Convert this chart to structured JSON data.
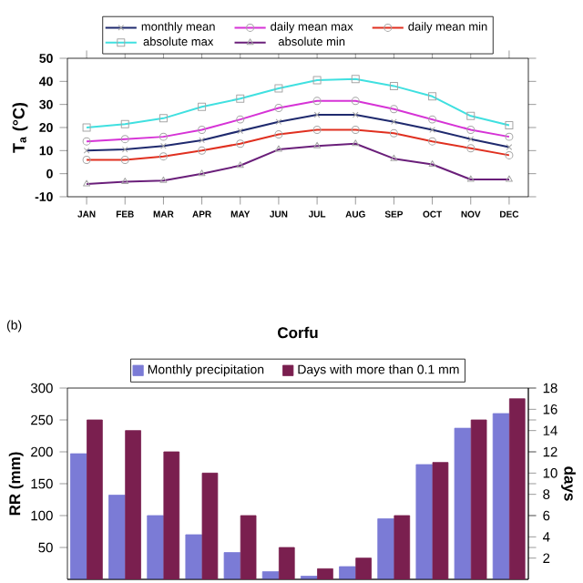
{
  "chart_data": [
    {
      "type": "line",
      "categories": [
        "JAN",
        "FEB",
        "MAR",
        "APR",
        "MAY",
        "JUN",
        "JUL",
        "AUG",
        "SEP",
        "OCT",
        "NOV",
        "DEC"
      ],
      "ylabel": "T$_{a}$ (°C)",
      "ylim": [
        -10,
        50
      ],
      "yticks": [
        -10,
        0,
        10,
        20,
        30,
        40,
        50
      ],
      "legend": "top",
      "series": [
        {
          "name": "monthly mean",
          "color": "#1f2a6e",
          "marker": "cross",
          "values": [
            10,
            10.5,
            12,
            14.5,
            18.5,
            22.5,
            25.5,
            25.5,
            22.5,
            19,
            15,
            11.5
          ]
        },
        {
          "name": "daily mean max",
          "color": "#d633d6",
          "marker": "circle",
          "values": [
            14,
            15,
            16,
            19,
            23.5,
            28.5,
            31.5,
            31.5,
            28,
            23.5,
            19,
            16
          ]
        },
        {
          "name": "daily mean min",
          "color": "#e03020",
          "marker": "circle",
          "values": [
            6,
            6,
            7.5,
            10,
            13,
            17,
            19,
            19,
            17.5,
            14,
            11,
            8
          ]
        },
        {
          "name": "absolute max",
          "color": "#40e0e0",
          "marker": "square",
          "values": [
            20,
            21.5,
            24,
            29,
            32.5,
            37,
            40.5,
            41,
            38,
            33.5,
            25,
            21
          ]
        },
        {
          "name": "absolute min",
          "color": "#6a1f7a",
          "marker": "triangle",
          "values": [
            -4.5,
            -3.5,
            -3,
            0,
            3.5,
            10.5,
            12,
            13,
            6.5,
            4,
            -2.5,
            -2.5
          ]
        }
      ]
    },
    {
      "type": "bar",
      "title": "Corfu",
      "annotations": [
        "(b)"
      ],
      "categories": [
        null,
        null,
        null,
        null,
        null,
        null,
        null,
        null,
        null,
        null,
        null,
        null
      ],
      "ylabel": "RR (mm)",
      "y2label": "days",
      "ylim": [
        0,
        300
      ],
      "yticks": [
        50,
        100,
        150,
        200,
        250,
        300
      ],
      "y2lim": [
        0,
        18
      ],
      "y2ticks": [
        2,
        4,
        6,
        8,
        10,
        12,
        14,
        16,
        18
      ],
      "tick_labels": "y",
      "legend": "top",
      "series": [
        {
          "name": "Monthly precipitation",
          "color": "#7b7bd6",
          "values": [
            197,
            132,
            100,
            70,
            42,
            12,
            5,
            20,
            95,
            180,
            237,
            260
          ]
        },
        {
          "name": "Days with more than 0.1 mm",
          "color": "#7a1f4f",
          "axis": "y2",
          "values": [
            15,
            14,
            12,
            10,
            6,
            3,
            1,
            2,
            6,
            11,
            15,
            17
          ]
        }
      ]
    }
  ]
}
